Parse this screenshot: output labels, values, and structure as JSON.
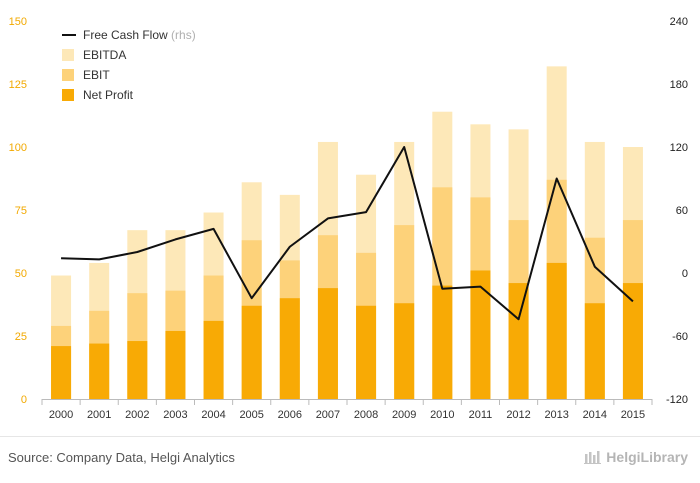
{
  "chart_data": {
    "type": "bar",
    "categories": [
      "2000",
      "2001",
      "2002",
      "2003",
      "2004",
      "2005",
      "2006",
      "2007",
      "2008",
      "2009",
      "2010",
      "2011",
      "2012",
      "2013",
      "2014",
      "2015"
    ],
    "series": [
      {
        "name": "EBITDA",
        "kind": "bar",
        "axis": "left",
        "color": "#fde8b8",
        "values": [
          49,
          54,
          67,
          67,
          74,
          86,
          81,
          102,
          89,
          102,
          114,
          109,
          107,
          132,
          102,
          100
        ]
      },
      {
        "name": "EBIT",
        "kind": "bar",
        "axis": "left",
        "color": "#fdd27a",
        "values": [
          29,
          35,
          42,
          43,
          49,
          63,
          55,
          65,
          58,
          69,
          84,
          80,
          71,
          87,
          64,
          71
        ]
      },
      {
        "name": "Net Profit",
        "kind": "bar",
        "axis": "left",
        "color": "#f8aa05",
        "values": [
          21,
          22,
          23,
          27,
          31,
          37,
          40,
          44,
          37,
          38,
          45,
          51,
          46,
          54,
          38,
          46
        ]
      },
      {
        "name": "Free Cash Flow",
        "suffix": "(rhs)",
        "kind": "line",
        "axis": "right",
        "color": "#111111",
        "values": [
          14,
          13,
          20,
          32,
          42,
          -24,
          25,
          52,
          58,
          120,
          -15,
          -13,
          -44,
          90,
          6,
          -27
        ]
      }
    ],
    "left_axis": {
      "min": 0,
      "max": 150,
      "ticks": [
        0,
        25,
        50,
        75,
        100,
        125,
        150
      ]
    },
    "right_axis": {
      "min": -120,
      "max": 240,
      "ticks": [
        -120,
        -60,
        0,
        60,
        120,
        180,
        240
      ]
    },
    "legend": {
      "placement": "top-left"
    },
    "grid": false
  },
  "footer": {
    "source": "Source: Company Data, Helgi Analytics",
    "brand": "HelgiLibrary"
  }
}
